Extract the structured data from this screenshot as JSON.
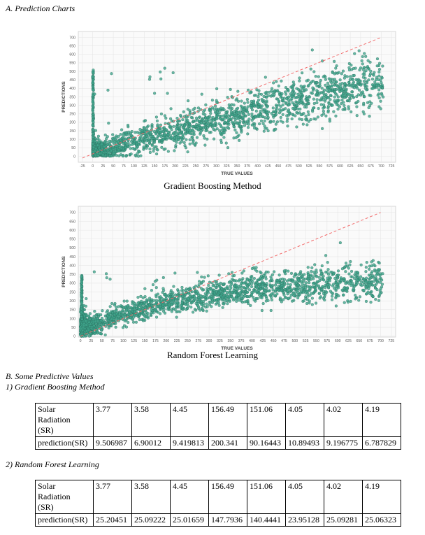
{
  "sectionA": {
    "title": "A.    Prediction Charts"
  },
  "sectionB": {
    "title": "B.    Some Predictive Values",
    "sub1": "1)    Gradient Boosting Method",
    "sub2": "2)    Random Forest Learning"
  },
  "chart_data": [
    {
      "type": "scatter",
      "title": "",
      "caption": "Gradient Boosting Method",
      "xlabel": "TRUE VALUES",
      "ylabel": "PREDICTIONS",
      "xlim": [
        -35,
        735
      ],
      "ylim": [
        -35,
        735
      ],
      "xticks": [
        "-25",
        "0",
        "25",
        "50",
        "75",
        "100",
        "125",
        "150",
        "175",
        "200",
        "225",
        "250",
        "275",
        "300",
        "325",
        "350",
        "375",
        "400",
        "425",
        "450",
        "475",
        "500",
        "525",
        "550",
        "575",
        "600",
        "625",
        "650",
        "675",
        "700",
        "725"
      ],
      "yticks": [
        "0",
        "50",
        "100",
        "150",
        "200",
        "250",
        "300",
        "350",
        "400",
        "450",
        "500",
        "550",
        "600",
        "650",
        "700"
      ],
      "reference_line": {
        "from": [
          -25,
          -10
        ],
        "to": [
          700,
          700
        ],
        "style": "dashed",
        "color": "#f26b6b"
      },
      "point_color": "#3fa58c",
      "grid": true,
      "trend": {
        "x_max": 705,
        "y_at_0": 20,
        "slope": 0.62,
        "spread": 60,
        "spike_at_zero_max": 510,
        "n_points": 2200
      }
    },
    {
      "type": "scatter",
      "title": "",
      "caption": "Random Forest Learning",
      "xlabel": "TRUE VALUES",
      "ylabel": "PREDICTIONS",
      "xlim": [
        -5,
        735
      ],
      "ylim": [
        -5,
        735
      ],
      "xticks": [
        "0",
        "25",
        "50",
        "75",
        "100",
        "125",
        "150",
        "175",
        "200",
        "225",
        "250",
        "275",
        "300",
        "325",
        "350",
        "375",
        "400",
        "425",
        "450",
        "475",
        "500",
        "525",
        "550",
        "575",
        "600",
        "625",
        "650",
        "675",
        "700",
        "725"
      ],
      "yticks": [
        "0",
        "50",
        "100",
        "150",
        "200",
        "250",
        "300",
        "350",
        "400",
        "450",
        "500",
        "550",
        "600",
        "650",
        "700"
      ],
      "reference_line": {
        "from": [
          0,
          0
        ],
        "to": [
          700,
          700
        ],
        "style": "dashed",
        "color": "#f26b6b"
      },
      "point_color": "#3fa58c",
      "grid": true,
      "trend": {
        "x_max": 705,
        "y_at_0": 30,
        "saturation": 330,
        "spread": 40,
        "spike_at_zero_max": 350,
        "n_points": 2200
      }
    }
  ],
  "tables": [
    {
      "label_top": [
        "Solar",
        "Radiation",
        "(SR)"
      ],
      "sr_values": [
        "3.77",
        "3.58",
        "4.45",
        "156.49",
        "151.06",
        "4.05",
        "4.02",
        "4.19"
      ],
      "label_bottom": "prediction(SR)",
      "pred_values": [
        "9.506987",
        "6.90012",
        "9.419813",
        "200.341",
        "90.16443",
        "10.89493",
        "9.196775",
        "6.787829"
      ]
    },
    {
      "label_top": [
        "Solar",
        "Radiation",
        "(SR)"
      ],
      "sr_values": [
        "3.77",
        "3.58",
        "4.45",
        "156.49",
        "151.06",
        "4.05",
        "4.02",
        "4.19"
      ],
      "label_bottom": "prediction(SR)",
      "pred_values": [
        "25.20451",
        "25.09222",
        "25.01659",
        "147.7936",
        "140.4441",
        "23.95128",
        "25.09281",
        "25.06323"
      ]
    }
  ]
}
